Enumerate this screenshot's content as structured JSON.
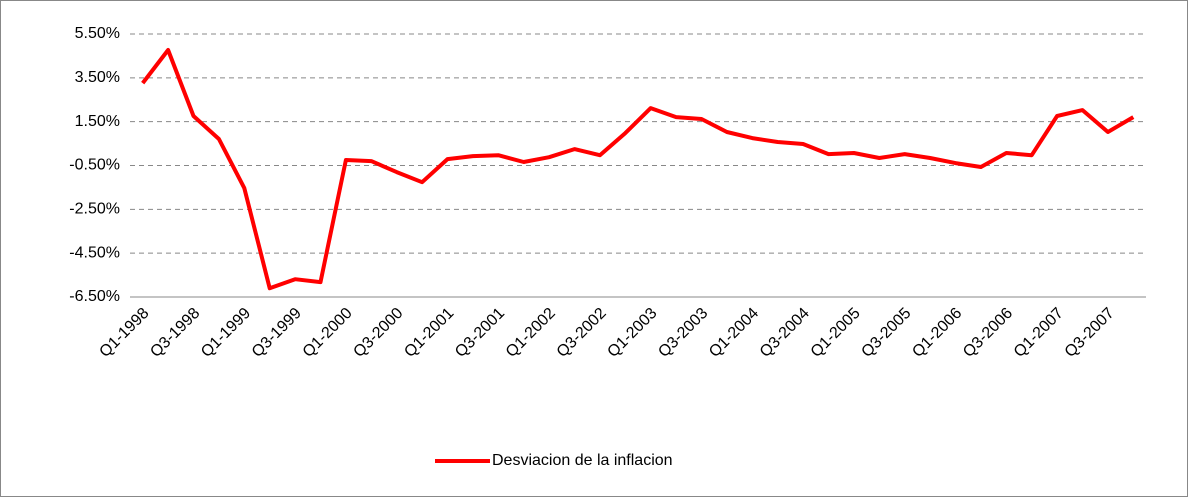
{
  "chart_data": {
    "type": "line",
    "categories": [
      "Q1-1998",
      null,
      "Q3-1998",
      null,
      "Q1-1999",
      null,
      "Q3-1999",
      null,
      "Q1-2000",
      null,
      "Q3-2000",
      null,
      "Q1-2001",
      null,
      "Q3-2001",
      null,
      "Q1-2002",
      null,
      "Q3-2002",
      null,
      "Q1-2003",
      null,
      "Q3-2003",
      null,
      "Q1-2004",
      null,
      "Q3-2004",
      null,
      "Q1-2005",
      null,
      "Q3-2005",
      null,
      "Q1-2006",
      null,
      "Q3-2006",
      null,
      "Q1-2007",
      null,
      "Q3-2007",
      null
    ],
    "series": [
      {
        "name": "Desviacion de la inflacion",
        "color": "#ff0000",
        "values": [
          3.26,
          4.77,
          1.76,
          0.71,
          -1.53,
          -6.1,
          -5.69,
          -5.82,
          -0.25,
          -0.3,
          -0.8,
          -1.26,
          -0.21,
          -0.07,
          -0.03,
          -0.34,
          -0.12,
          0.25,
          -0.03,
          0.98,
          2.12,
          1.71,
          1.62,
          1.03,
          0.75,
          0.57,
          0.48,
          0.02,
          0.07,
          -0.16,
          0.02,
          -0.16,
          -0.39,
          -0.57,
          0.07,
          -0.03,
          1.76,
          2.03,
          1.03,
          1.71
        ]
      }
    ],
    "ylim": [
      -6.5,
      5.5
    ],
    "yticks": [
      {
        "value": -6.5,
        "label": "-6.50%"
      },
      {
        "value": -4.5,
        "label": "-4.50%"
      },
      {
        "value": -2.5,
        "label": "-2.50%"
      },
      {
        "value": -0.5,
        "label": "-0.50%"
      },
      {
        "value": 1.5,
        "label": "1.50%"
      },
      {
        "value": 3.5,
        "label": "3.50%"
      },
      {
        "value": 5.5,
        "label": "5.50%"
      }
    ],
    "grid": true,
    "legend": "bottom"
  }
}
